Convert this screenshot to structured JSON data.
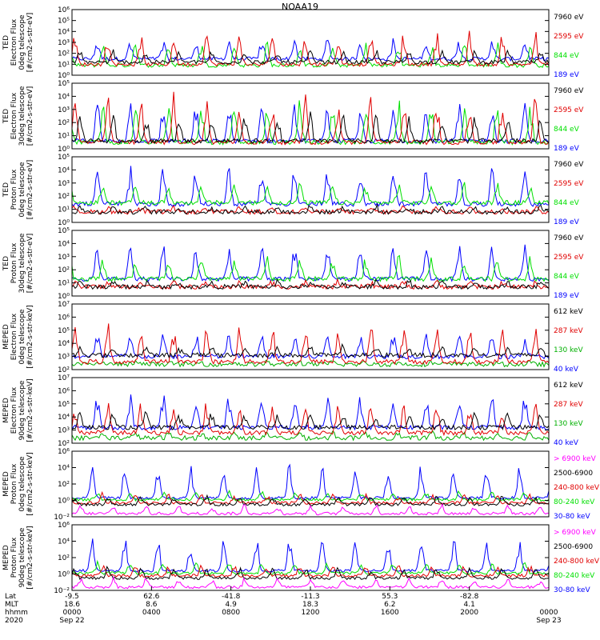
{
  "title": "NOAA19",
  "chart_data": [
    {
      "type": "line",
      "ylabel_lines": [
        "TED",
        "Electron Flux",
        "0deg telescope",
        "[#/cm2-s-str-eV]"
      ],
      "y_log": true,
      "ylim": [
        1,
        1000000
      ],
      "y_ticks": [
        "10⁰",
        "10¹",
        "10²",
        "10³",
        "10⁴",
        "10⁵",
        "10⁶"
      ],
      "series": [
        {
          "name": "7960 eV",
          "color": "#000000",
          "base": 1.2,
          "peak": 2.2
        },
        {
          "name": "2595 eV",
          "color": "#e00000",
          "base": 1.0,
          "peak": 3.8
        },
        {
          "name": "844 eV",
          "color": "#00e000",
          "base": 0.9,
          "peak": 3.0
        },
        {
          "name": "189 eV",
          "color": "#0000ff",
          "base": 1.5,
          "peak": 3.2
        }
      ]
    },
    {
      "type": "line",
      "ylabel_lines": [
        "TED",
        "Electron Flux",
        "30deg telescope",
        "[#/cm2-s-str-eV]"
      ],
      "y_log": true,
      "ylim": [
        1,
        100000
      ],
      "y_ticks": [
        "10⁰",
        "10¹",
        "10²",
        "10³",
        "10⁴",
        "10⁵"
      ],
      "series": [
        {
          "name": "7960 eV",
          "color": "#000000",
          "base": 0.6,
          "peak": 2.6
        },
        {
          "name": "2595 eV",
          "color": "#e00000",
          "base": 0.5,
          "peak": 3.9
        },
        {
          "name": "844 eV",
          "color": "#00e000",
          "base": 0.5,
          "peak": 3.5
        },
        {
          "name": "189 eV",
          "color": "#0000ff",
          "base": 0.6,
          "peak": 3.3
        }
      ]
    },
    {
      "type": "line",
      "ylabel_lines": [
        "TED",
        "Proton Flux",
        "0deg telescope",
        "[#/cm2-s-str-eV]"
      ],
      "y_log": true,
      "ylim": [
        1,
        100000
      ],
      "y_ticks": [
        "10⁰",
        "10¹",
        "10²",
        "10³",
        "10⁴",
        "10⁵"
      ],
      "series": [
        {
          "name": "7960 eV",
          "color": "#000000",
          "base": 0.8,
          "peak": 1.2
        },
        {
          "name": "2595 eV",
          "color": "#e00000",
          "base": 0.8,
          "peak": 1.2
        },
        {
          "name": "844 eV",
          "color": "#00e000",
          "base": 1.5,
          "peak": 3.0
        },
        {
          "name": "189 eV",
          "color": "#0000ff",
          "base": 1.4,
          "peak": 4.2
        }
      ]
    },
    {
      "type": "line",
      "ylabel_lines": [
        "TED",
        "Proton Flux",
        "30deg telescope",
        "[#/cm2-s-str-eV]"
      ],
      "y_log": true,
      "ylim": [
        1,
        100000
      ],
      "y_ticks": [
        "10⁰",
        "10¹",
        "10²",
        "10³",
        "10⁴",
        "10⁵"
      ],
      "series": [
        {
          "name": "7960 eV",
          "color": "#000000",
          "base": 0.7,
          "peak": 1.1
        },
        {
          "name": "2595 eV",
          "color": "#e00000",
          "base": 0.7,
          "peak": 1.1
        },
        {
          "name": "844 eV",
          "color": "#00e000",
          "base": 1.3,
          "peak": 2.9
        },
        {
          "name": "189 eV",
          "color": "#0000ff",
          "base": 1.3,
          "peak": 3.8
        }
      ]
    },
    {
      "type": "line",
      "ylabel_lines": [
        "MEPED",
        "Electron Flux",
        "0deg telescope",
        "[#/cm2-s-str-keV]"
      ],
      "y_log": true,
      "ylim": [
        100,
        10000000
      ],
      "y_ticks": [
        "10²",
        "10³",
        "10⁴",
        "10⁵",
        "10⁶",
        "10⁷"
      ],
      "series": [
        {
          "name": "612 keV",
          "color": "#000000",
          "base": 3.1,
          "peak": 3.8
        },
        {
          "name": "287 keV",
          "color": "#e00000",
          "base": 2.6,
          "peak": 5.3
        },
        {
          "name": "130 keV",
          "color": "#00b000",
          "base": 2.4,
          "peak": 2.6
        },
        {
          "name": "40 keV",
          "color": "#0000ff",
          "base": 3.0,
          "peak": 4.7
        }
      ]
    },
    {
      "type": "line",
      "ylabel_lines": [
        "MEPED",
        "Electron Flux",
        "90deg telescope",
        "[#/cm2-s-str-keV]"
      ],
      "y_log": true,
      "ylim": [
        100,
        10000000
      ],
      "y_ticks": [
        "10²",
        "10³",
        "10⁴",
        "10⁵",
        "10⁶",
        "10⁷"
      ],
      "series": [
        {
          "name": "612 keV",
          "color": "#000000",
          "base": 3.2,
          "peak": 4.3
        },
        {
          "name": "287 keV",
          "color": "#e00000",
          "base": 2.8,
          "peak": 5.0
        },
        {
          "name": "130 keV",
          "color": "#00b000",
          "base": 2.4,
          "peak": 2.8
        },
        {
          "name": "40 keV",
          "color": "#0000ff",
          "base": 3.2,
          "peak": 5.6
        }
      ]
    },
    {
      "type": "line",
      "ylabel_lines": [
        "MEPED",
        "Proton Flux",
        "0deg telescope",
        "[#/cm2-s-str-keV]"
      ],
      "y_log": true,
      "ylim": [
        0.01,
        1000000
      ],
      "y_ticks": [
        "10⁻²",
        "10⁰",
        "10²",
        "10⁴",
        "10⁶"
      ],
      "series": [
        {
          "name": "> 6900 keV",
          "color": "#ff00ff",
          "base": -1.6,
          "peak": -0.6
        },
        {
          "name": "2500-6900",
          "color": "#000000",
          "base": -0.5,
          "peak": 0.5
        },
        {
          "name": "240-800 keV",
          "color": "#e00000",
          "base": -0.3,
          "peak": 0.8
        },
        {
          "name": "80-240 keV",
          "color": "#00e000",
          "base": 0.1,
          "peak": 1.0
        },
        {
          "name": "30-80 keV",
          "color": "#0000ff",
          "base": 0.3,
          "peak": 4.2
        }
      ]
    },
    {
      "type": "line",
      "ylabel_lines": [
        "MEPED",
        "Proton Flux",
        "90deg telescope",
        "[#/cm2-s-str-keV]"
      ],
      "y_log": true,
      "ylim": [
        0.01,
        1000000
      ],
      "y_ticks": [
        "10⁻²",
        "10⁰",
        "10²",
        "10⁴",
        "10⁶"
      ],
      "series": [
        {
          "name": "> 6900 keV",
          "color": "#ff00ff",
          "base": -1.6,
          "peak": -0.6
        },
        {
          "name": "2500-6900",
          "color": "#000000",
          "base": -0.5,
          "peak": 0.8
        },
        {
          "name": "240-800 keV",
          "color": "#e00000",
          "base": -0.2,
          "peak": 1.0
        },
        {
          "name": "80-240 keV",
          "color": "#00e000",
          "base": 0.1,
          "peak": 1.4
        },
        {
          "name": "30-80 keV",
          "color": "#0000ff",
          "base": 0.4,
          "peak": 4.2
        }
      ]
    }
  ],
  "x_axis": {
    "row_labels": [
      "Lat",
      "MLT",
      "hhmm",
      "2020"
    ],
    "ticks": [
      {
        "lat": "-9.5",
        "mlt": "18.6",
        "hhmm": "0000",
        "date": "Sep 22"
      },
      {
        "lat": "62.6",
        "mlt": "8.6",
        "hhmm": "0400",
        "date": ""
      },
      {
        "lat": "-41.8",
        "mlt": "4.9",
        "hhmm": "0800",
        "date": ""
      },
      {
        "lat": "-11.3",
        "mlt": "18.3",
        "hhmm": "1200",
        "date": ""
      },
      {
        "lat": "55.3",
        "mlt": "6.2",
        "hhmm": "1600",
        "date": ""
      },
      {
        "lat": "-82.8",
        "mlt": "4.1",
        "hhmm": "2000",
        "date": ""
      },
      {
        "lat": "",
        "mlt": "",
        "hhmm": "0000",
        "date": "Sep 23"
      }
    ]
  }
}
